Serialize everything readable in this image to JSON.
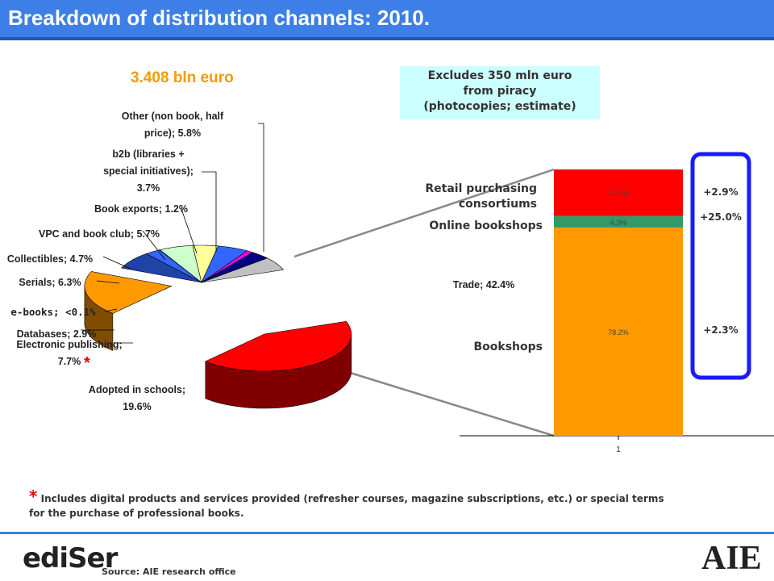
{
  "header": {
    "title": "Breakdown of distribution channels: 2010."
  },
  "total_label": "3.408 bln euro",
  "note": {
    "lines": [
      "Excludes 350 mln euro",
      "from piracy",
      "(photocopies; estimate)"
    ]
  },
  "chart_data": [
    {
      "type": "pie",
      "slices": [
        {
          "label": "Trade",
          "value": 42.4,
          "value_text": "42.4%",
          "color": "#ff0000"
        },
        {
          "label": "Adopted in schools",
          "value": 19.6,
          "value_text": "19.6%",
          "color": "#ff9900"
        },
        {
          "label": "Electronic publishing",
          "value": 7.7,
          "value_text": "7.7%",
          "color": "#1f44a8"
        },
        {
          "label": "Databases",
          "value": 2.9,
          "value_text": "2.9%",
          "color": "#3366ff"
        },
        {
          "label": "e-books",
          "value": 0.1,
          "value_text": "<0.1%",
          "color": "#3399ff"
        },
        {
          "label": "Serials",
          "value": 6.3,
          "value_text": "6.3%",
          "color": "#ccffcc"
        },
        {
          "label": "Collectibles",
          "value": 4.7,
          "value_text": "4.7%",
          "color": "#ffff99"
        },
        {
          "label": "VPC and book club",
          "value": 5.7,
          "value_text": "5.7%",
          "color": "#3366ff"
        },
        {
          "label": "Book exports",
          "value": 1.2,
          "value_text": "1.2%",
          "color": "#ff00ff"
        },
        {
          "label": "b2b (libraries + special initiatives)",
          "value": 3.7,
          "value_text": "3.7%",
          "color": "#000080"
        },
        {
          "label": "Other (non book, half price)",
          "value": 5.8,
          "value_text": "5.8%",
          "color": "#c0c0c0"
        }
      ],
      "label_texts": {
        "other": [
          "Other (non book, half",
          "price); 5.8%"
        ],
        "b2b": [
          "b2b (libraries +",
          "special initiatives);",
          "3.7%"
        ],
        "exports": [
          "Book exports; 1.2%"
        ],
        "vpc": [
          "VPC and book club; 5.7%"
        ],
        "collectibles": [
          "Collectibles; 4.7%"
        ],
        "serials": [
          "Serials; 6.3%"
        ],
        "ebooks": [
          "e-books; <0.1%"
        ],
        "databases": [
          "Databases; 2.9%"
        ],
        "electronic": [
          "Electronic publishing;",
          "7.7%"
        ],
        "schools": [
          "Adopted in schools;",
          "19.6%"
        ],
        "trade": [
          "Trade; 42.4%"
        ]
      },
      "asterisk": "*"
    },
    {
      "type": "bar",
      "stacked": true,
      "categories": [
        "1"
      ],
      "series": [
        {
          "name": "Bookshops",
          "values": [
            78.2
          ],
          "value_text": "78.2%",
          "color": "#ff9900",
          "growth": "+2.3%"
        },
        {
          "name": "Online bookshops",
          "values": [
            4.3
          ],
          "value_text": "4.3%",
          "color": "#339966",
          "growth": "+25.0%"
        },
        {
          "name": "Retail purchasing consortiums",
          "values": [
            17.5
          ],
          "value_text": "17.5%",
          "color": "#ff0000",
          "growth": "+2.9%"
        }
      ],
      "series_label_lines": {
        "retail": [
          "Retail purchasing",
          "consortiums"
        ],
        "online": [
          "Online bookshops"
        ],
        "bookshops": [
          "Bookshops"
        ]
      },
      "ylim": [
        0,
        100
      ]
    }
  ],
  "footnote": {
    "star": "*",
    "text": "Includes digital products and services provided (refresher courses, magazine subscriptions, etc.) or special terms for the purchase of professional books."
  },
  "footer": {
    "logo_left": "ediSer",
    "source": "Source: AIE research office",
    "logo_right": "AIE"
  }
}
